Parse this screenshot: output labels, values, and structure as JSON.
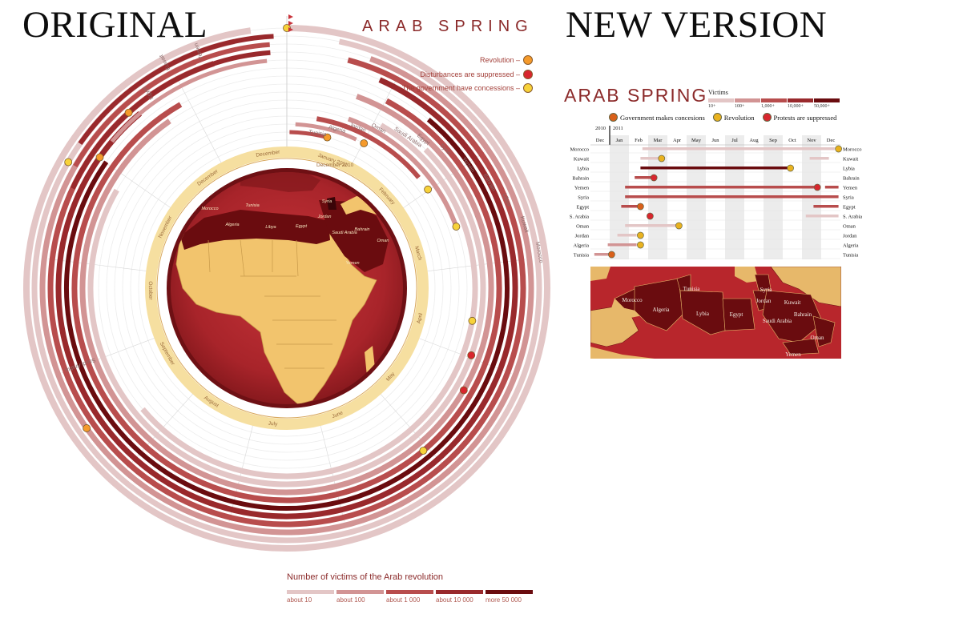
{
  "labels": {
    "original": "ORIGINAL",
    "new_version": "NEW VERSION"
  },
  "original": {
    "title": "ARAB SPRING",
    "legend": [
      {
        "label": "Revolution –",
        "color": "#f59a2b"
      },
      {
        "label": "Disturbances are suppressed –",
        "color": "#d8262e"
      },
      {
        "label": "The government have concessions –",
        "color": "#f7d23a"
      }
    ],
    "months": [
      "December",
      "January 2011",
      "February",
      "March",
      "April",
      "May",
      "June",
      "July",
      "August",
      "September",
      "October",
      "November",
      "December"
    ],
    "inner_month_label": "December 2010",
    "countries": [
      "Tunisia",
      "Algeria",
      "Jordan",
      "Oman",
      "Saudi Arabia",
      "Egypt",
      "Syria",
      "Yemen",
      "Bahrain",
      "Libya",
      "Kuwait",
      "Morocco"
    ],
    "left_labels": [
      "Kuwait",
      "Yemen",
      "Egypt",
      "Saudi Arabia"
    ],
    "map_labels": [
      "Morocco",
      "Algeria",
      "Tunisia",
      "Libya",
      "Egypt",
      "Syria",
      "Jordan",
      "Saudi Arabia",
      "Bahrain",
      "Yemen",
      "Oman"
    ],
    "victims_title": "Number of victims of the Arab revolution",
    "victims_scale": [
      {
        "label": "about 10",
        "color": "#e3c6c6"
      },
      {
        "label": "about 100",
        "color": "#d29494"
      },
      {
        "label": "about 1 000",
        "color": "#b84d4d"
      },
      {
        "label": "about 10 000",
        "color": "#99292c"
      },
      {
        "label": "more 50 000",
        "color": "#6a0c0f"
      }
    ]
  },
  "new_version": {
    "title": "ARAB SPRING",
    "victims_title": "Victims",
    "victims_scale": [
      {
        "label": "10+",
        "color": "#e3c6c6"
      },
      {
        "label": "100+",
        "color": "#d29494"
      },
      {
        "label": "1,000+",
        "color": "#b84d4d"
      },
      {
        "label": "10,000+",
        "color": "#99292c"
      },
      {
        "label": "50,000+",
        "color": "#6a0c0f"
      }
    ],
    "legend": [
      {
        "label": "Government makes concesions",
        "color": "#d9601a"
      },
      {
        "label": "Revolution",
        "color": "#e9b21f"
      },
      {
        "label": "Protests are suppressed",
        "color": "#d8262e"
      }
    ],
    "years": [
      "2010",
      "2011"
    ],
    "months": [
      "Dec",
      "Jan",
      "Feb",
      "Mar",
      "Apr",
      "May",
      "Jun",
      "Jul",
      "Aug",
      "Sep",
      "Oct",
      "Nov",
      "Dec"
    ],
    "countries": [
      "Morocco",
      "Kuwait",
      "Lybia",
      "Bahrain",
      "Yemen",
      "Syria",
      "Egypt",
      "S. Arabia",
      "Oman",
      "Jordan",
      "Algeria",
      "Tunisia"
    ],
    "map_labels": [
      "Morocco",
      "Algeria",
      "Tunisia",
      "Lybia",
      "Egypt",
      "Syria",
      "Jordan",
      "Kuwait",
      "Bahrain",
      "Saudi Arabia",
      "Oman",
      "Yemen"
    ]
  }
}
